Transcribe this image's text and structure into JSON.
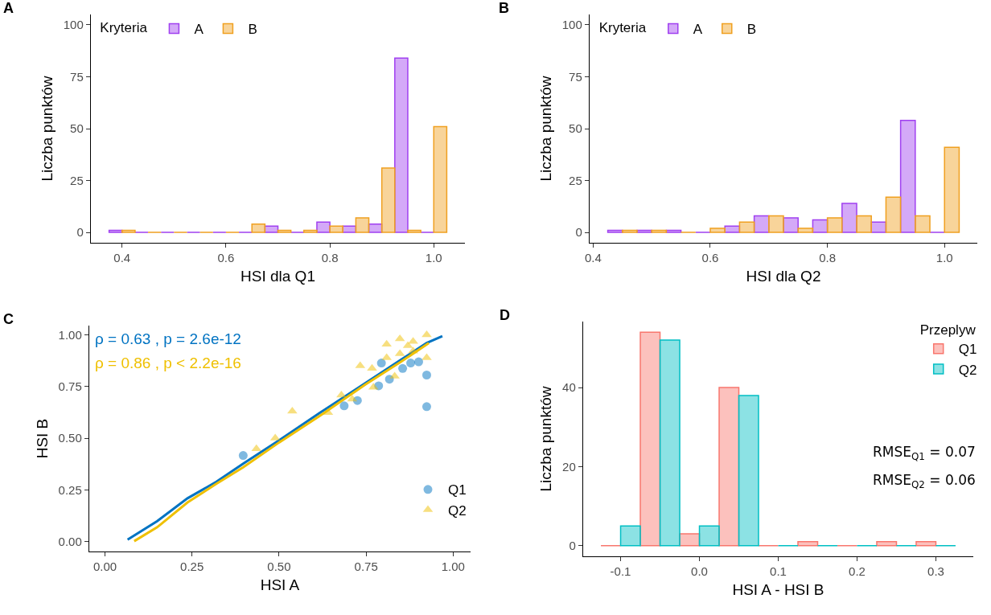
{
  "chart_data": [
    {
      "type": "bar",
      "title": "A",
      "xlabel": "HSI dla Q1",
      "ylabel": "Liczba punktów",
      "legend_title": "Kryteria",
      "legend": "top left",
      "grid": false,
      "xlim": [
        0.34,
        1.06
      ],
      "xticks": [
        0.4,
        0.6,
        0.8,
        {
          "value": 1,
          "label": "1.0"
        }
      ],
      "ylim": [
        -5,
        105
      ],
      "yticks": [
        0,
        25,
        50,
        75,
        100
      ],
      "series": [
        {
          "name": "A",
          "color": "#a040f0",
          "x": [
            0.3875,
            0.4375,
            0.4875,
            0.5375,
            0.5875,
            0.6375,
            0.6875,
            0.7375,
            0.7875,
            0.8375,
            0.8875,
            0.9375,
            0.9875
          ],
          "values": [
            1,
            0,
            0,
            0,
            0,
            0,
            3,
            0,
            5,
            3,
            4,
            84,
            0
          ]
        },
        {
          "name": "B",
          "color": "#f0a020",
          "x": [
            0.4125,
            0.4625,
            0.5125,
            0.5625,
            0.6125,
            0.6625,
            0.7125,
            0.7625,
            0.8125,
            0.8625,
            0.9125,
            0.9625,
            1.0125
          ],
          "values": [
            1,
            0,
            0,
            0,
            0,
            4,
            1,
            1,
            3,
            7,
            31,
            1,
            51
          ]
        }
      ]
    },
    {
      "type": "bar",
      "title": "B",
      "xlabel": "HSI dla Q2",
      "ylabel": "Liczba punktów",
      "legend_title": "Kryteria",
      "legend": "top left",
      "grid": false,
      "xlim": [
        0.394,
        1.056
      ],
      "xticks": [
        0.4,
        0.6,
        0.8,
        {
          "value": 1,
          "label": "1.0"
        }
      ],
      "ylim": [
        -5,
        105
      ],
      "yticks": [
        0,
        25,
        50,
        75,
        100
      ],
      "series": [
        {
          "name": "A",
          "color": "#a040f0",
          "x": [
            0.4375,
            0.4875,
            0.5375,
            0.5875,
            0.6375,
            0.6875,
            0.7375,
            0.7875,
            0.8375,
            0.8875,
            0.9375,
            0.9875
          ],
          "values": [
            1,
            1,
            1,
            0,
            3,
            8,
            7,
            6,
            14,
            5,
            54,
            0
          ]
        },
        {
          "name": "B",
          "color": "#f0a020",
          "x": [
            0.4625,
            0.5125,
            0.5625,
            0.6125,
            0.6625,
            0.7125,
            0.7625,
            0.8125,
            0.8625,
            0.9125,
            0.9625,
            1.0125
          ],
          "values": [
            1,
            1,
            0,
            2,
            5,
            8,
            2,
            7,
            8,
            17,
            8,
            41
          ]
        }
      ]
    },
    {
      "type": "scatter",
      "title": "C",
      "xlabel": "HSI A",
      "ylabel": "HSI B",
      "legend": "bottom right",
      "grid": false,
      "xlim": [
        -0.045,
        1.05
      ],
      "xticks": [
        {
          "value": 0,
          "label": "0.00"
        },
        0.25,
        {
          "value": 0.5,
          "label": "0.50"
        },
        0.75,
        {
          "value": 1,
          "label": "1.00"
        }
      ],
      "ylim": [
        -0.047,
        1.045
      ],
      "yticks": [
        {
          "value": 0,
          "label": "0.00"
        },
        0.25,
        {
          "value": 0.5,
          "label": "0.50"
        },
        0.75,
        {
          "value": 1,
          "label": "1.00"
        }
      ],
      "annotations": [
        "ρ = 0.63 , p = 2.6e-12",
        "ρ = 0.86 , p < 2.2e-16"
      ],
      "series": [
        {
          "name": "Q1",
          "color": "#0073c2",
          "marker": "circle",
          "x": [
            0.397,
            0.794,
            0.786,
            0.725,
            0.687,
            0.817,
            0.878,
            0.901,
            0.924,
            0.924,
            0.855
          ],
          "values": [
            0.417,
            0.864,
            0.754,
            0.683,
            0.657,
            0.786,
            0.864,
            0.87,
            0.806,
            0.653,
            0.838
          ]
        },
        {
          "name": "Q2",
          "color": "#efc000",
          "marker": "triangle",
          "x": [
            0.435,
            0.489,
            0.538,
            0.679,
            0.733,
            0.767,
            0.809,
            0.847,
            0.885,
            0.87,
            0.924,
            0.924,
            0.809,
            0.832,
            0.771,
            0.641,
            0.71,
            0.885,
            0.847
          ],
          "values": [
            0.449,
            0.501,
            0.631,
            0.709,
            0.851,
            0.838,
            0.955,
            0.981,
            0.968,
            0.948,
            1.0,
            0.89,
            0.89,
            0.8,
            0.747,
            0.624,
            0.689,
            0.922,
            0.909
          ]
        },
        {
          "type": "line",
          "color": "#0073c2",
          "x": [
            0.065,
            0.15,
            0.237,
            0.32,
            0.397,
            0.5,
            0.618,
            0.748,
            0.85,
            0.924,
            0.969
          ],
          "values": [
            0.01,
            0.1,
            0.21,
            0.29,
            0.378,
            0.49,
            0.624,
            0.767,
            0.88,
            0.961,
            0.994
          ]
        },
        {
          "type": "line",
          "color": "#efc000",
          "x": [
            0.084,
            0.15,
            0.237,
            0.32,
            0.397,
            0.5,
            0.618,
            0.748,
            0.85,
            0.93
          ],
          "values": [
            0.003,
            0.07,
            0.19,
            0.28,
            0.36,
            0.48,
            0.61,
            0.76,
            0.87,
            0.96
          ]
        }
      ]
    },
    {
      "type": "bar",
      "title": "D",
      "xlabel": "HSI A - HSI B",
      "ylabel": "Liczba punktów",
      "legend_title": "Przeplyw",
      "legend": "top right",
      "grid": false,
      "xlim": [
        -0.1475,
        0.3475
      ],
      "xticks": [
        -0.1,
        {
          "value": 0,
          "label": "0.0"
        },
        0.1,
        0.2,
        0.3
      ],
      "ylim": [
        -2.7,
        56.7
      ],
      "yticks": [
        0,
        20,
        40
      ],
      "annotations": [
        "RMSE$_{Q1}$ = 0.07",
        "RMSE$_{Q2}$ = 0.06"
      ],
      "series": [
        {
          "name": "Q1",
          "color": "#f8766d",
          "x": [
            -0.1125,
            -0.0625,
            -0.0125,
            0.0375,
            0.0875,
            0.1375,
            0.1875,
            0.2375,
            0.2875
          ],
          "values": [
            0,
            54,
            3,
            40,
            0,
            1,
            0,
            1,
            1
          ]
        },
        {
          "name": "Q2",
          "color": "#00bfc4",
          "x": [
            -0.0875,
            -0.0375,
            0.0125,
            0.0625,
            0.1125,
            0.1625,
            0.2125,
            0.2625,
            0.3125
          ],
          "values": [
            5,
            52,
            5,
            38,
            0,
            0,
            0,
            0,
            0
          ]
        }
      ]
    }
  ]
}
